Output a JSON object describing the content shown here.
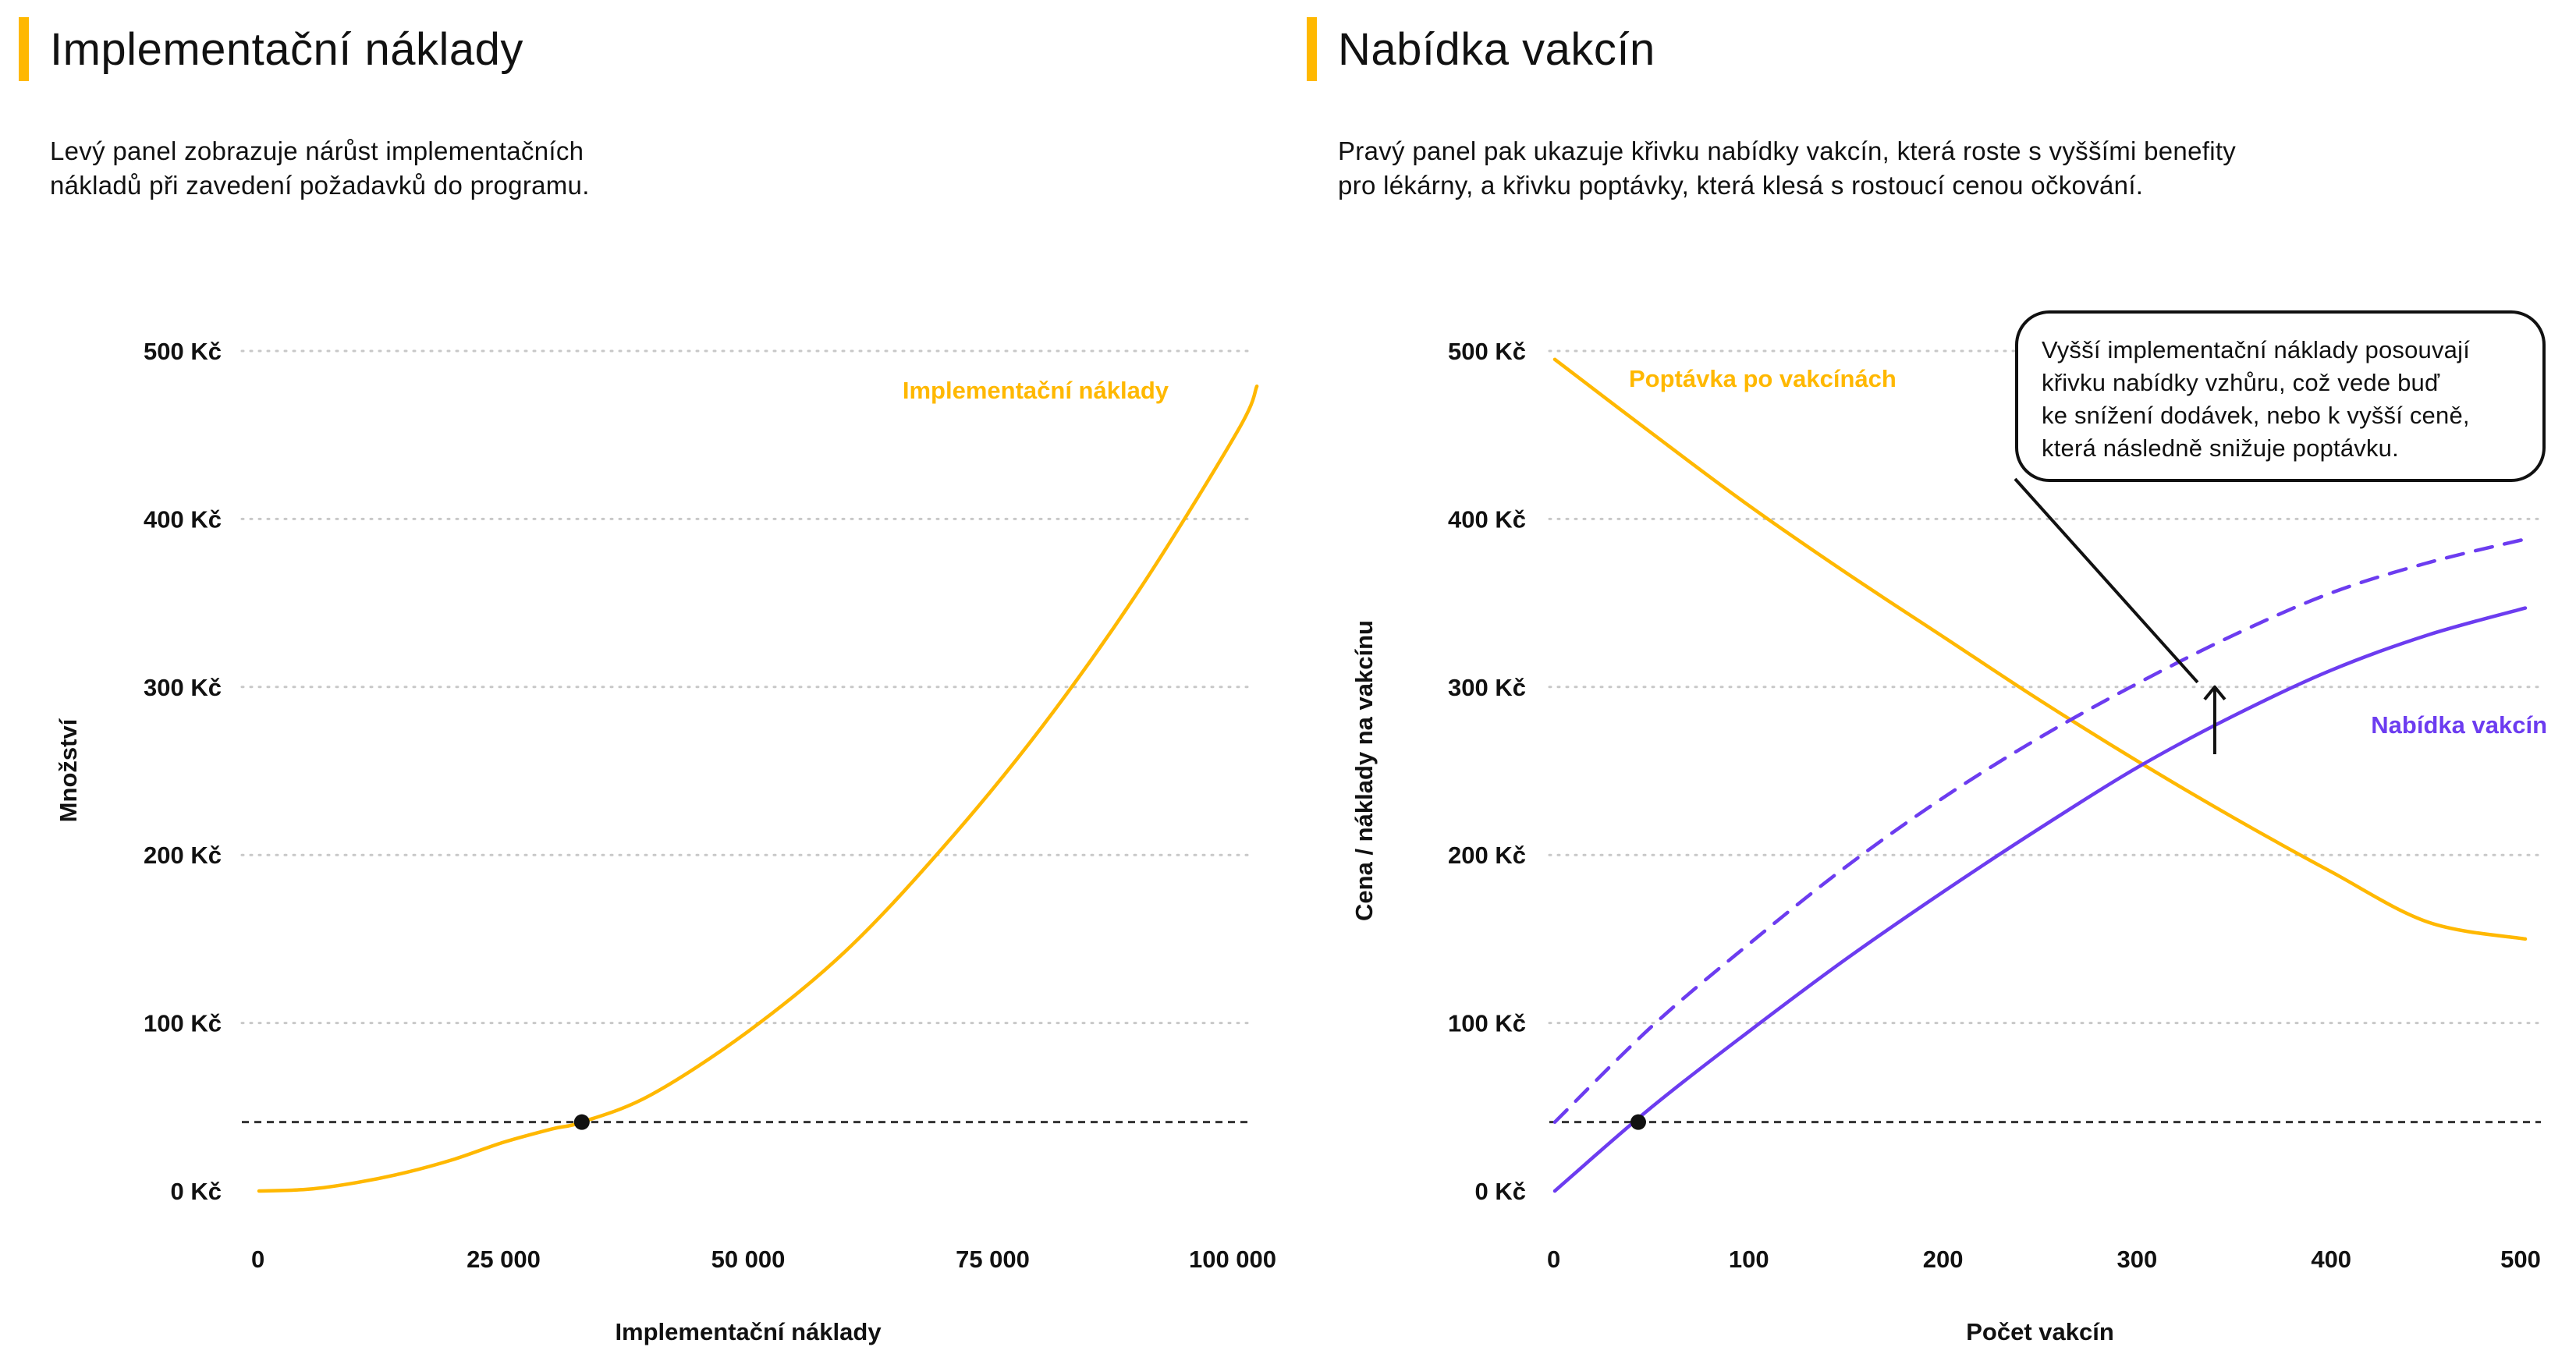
{
  "colors": {
    "accent": "#FFB800",
    "demand": "#FFB800",
    "supply": "#6C3CF0",
    "text": "#111111",
    "grid": "#C8C8C8"
  },
  "left_panel": {
    "title": "Implementační náklady",
    "description_line1": "Levý panel zobrazuje nárůst implementačních",
    "description_line2": "nákladů při zavedení požadavků do programu."
  },
  "right_panel": {
    "title": "Nabídka vakcín",
    "description_line1": "Pravý panel pak ukazuje křivku nabídky vakcín, která roste s vyššími benefity",
    "description_line2": "pro lékárny, a křivku poptávky, která klesá s rostoucí cenou očkování.",
    "callout": {
      "line1": "Vyšší implementační náklady posouvají",
      "line2": "křivku nabídky vzhůru, což vede buď",
      "line3": "ke snížení dodávek, nebo k vyšší ceně,",
      "line4": "která následně snižuje poptávku."
    }
  },
  "chart_data": [
    {
      "type": "line",
      "xlabel": "Implementační náklady",
      "ylabel": "Množství",
      "xlim": [
        0,
        100000
      ],
      "ylim": [
        0,
        500
      ],
      "x_ticks": [
        0,
        25000,
        50000,
        75000,
        100000
      ],
      "x_tick_labels": [
        "0",
        "25 000",
        "50 000",
        "75 000",
        "100 000"
      ],
      "y_ticks": [
        0,
        100,
        200,
        300,
        400,
        500
      ],
      "y_tick_labels": [
        "0 Kč",
        "100 Kč",
        "200 Kč",
        "300 Kč",
        "400 Kč",
        "500 Kč"
      ],
      "grid": true,
      "reference_line_y": 41,
      "series": [
        {
          "name": "Implementační náklady",
          "label": "Implementační náklady",
          "style": "solid",
          "x": [
            0,
            5000,
            10000,
            15000,
            20000,
            25000,
            30000,
            33000,
            40000,
            50000,
            60000,
            70000,
            80000,
            90000,
            100000,
            102000
          ],
          "values": [
            0,
            1,
            5,
            11,
            19,
            29,
            37,
            41,
            57,
            95,
            143,
            205,
            276,
            358,
            452,
            479
          ]
        }
      ],
      "points": [
        {
          "x": 33000,
          "y": 41
        }
      ]
    },
    {
      "type": "line",
      "xlabel": "Počet vakcín",
      "ylabel": "Cena / náklady na vakcínu",
      "xlim": [
        0,
        500
      ],
      "ylim": [
        0,
        500
      ],
      "x_ticks": [
        0,
        100,
        200,
        300,
        400,
        500
      ],
      "x_tick_labels": [
        "0",
        "100",
        "200",
        "300",
        "400",
        "500"
      ],
      "y_ticks": [
        0,
        100,
        200,
        300,
        400,
        500
      ],
      "y_tick_labels": [
        "0 Kč",
        "100 Kč",
        "200 Kč",
        "300 Kč",
        "400 Kč",
        "500 Kč"
      ],
      "grid": true,
      "reference_line_y": 41,
      "series": [
        {
          "name": "Poptávka po vakcínách",
          "label": "Poptávka po vakcínách",
          "style": "solid",
          "x": [
            0,
            50,
            100,
            150,
            200,
            250,
            300,
            350,
            400,
            450,
            500
          ],
          "values": [
            495,
            451,
            408,
            368,
            330,
            292,
            256,
            222,
            190,
            160,
            150
          ]
        },
        {
          "name": "Nabídka vakcín",
          "label": "Nabídka vakcín",
          "style": "solid",
          "x": [
            0,
            50,
            100,
            150,
            200,
            250,
            300,
            350,
            400,
            450,
            500
          ],
          "values": [
            0,
            50,
            95,
            138,
            178,
            216,
            252,
            283,
            310,
            331,
            347
          ]
        },
        {
          "name": "Nabídka vakcín (vyšší náklady)",
          "style": "dashed",
          "x": [
            0,
            50,
            100,
            150,
            200,
            250,
            300,
            350,
            400,
            450,
            500
          ],
          "values": [
            41,
            98,
            147,
            193,
            234,
            270,
            302,
            331,
            356,
            374,
            388
          ]
        }
      ],
      "points": [
        {
          "x": 43,
          "y": 41
        }
      ],
      "arrow": {
        "x": 340,
        "from": 260,
        "to": 300
      }
    }
  ]
}
